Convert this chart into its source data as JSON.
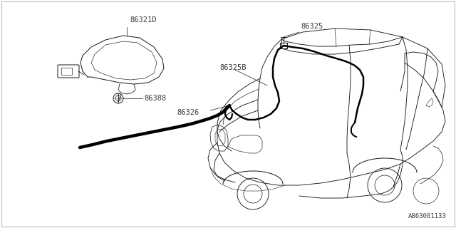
{
  "bg_color": "#ffffff",
  "line_color": "#1a1a1a",
  "diagram_id": "A863001133",
  "font_size_label": 7.5,
  "font_size_id": 6.5,
  "font_color": "#3a3a3a",
  "border_color": "#bbbbbb",
  "lw_car": 0.65,
  "lw_cable": 1.8,
  "lw_thick_cable": 3.2,
  "lw_leader": 0.5,
  "lw_ant": 0.75
}
